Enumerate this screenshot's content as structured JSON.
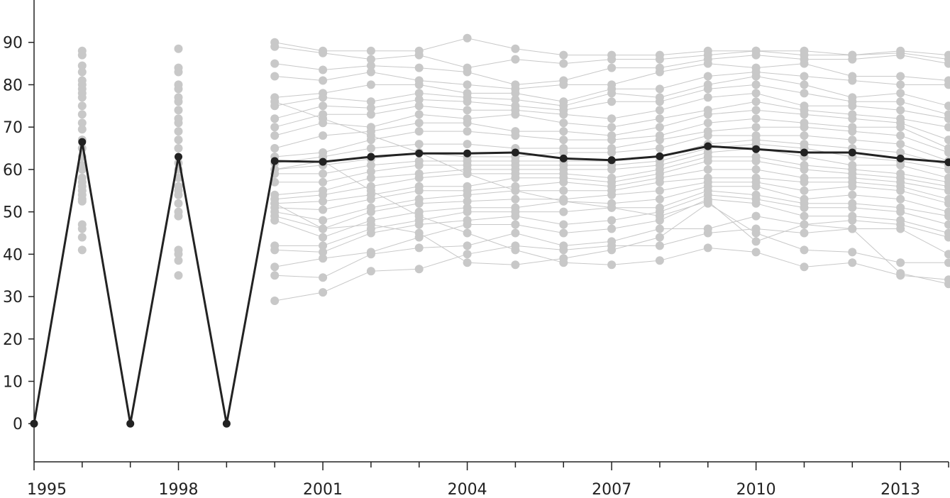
{
  "chart_data": {
    "type": "line",
    "title": "",
    "xlabel": "",
    "ylabel": "",
    "xlim": [
      1995,
      2014
    ],
    "ylim": [
      -9,
      100
    ],
    "x_ticks": [
      1995,
      1998,
      2001,
      2004,
      2007,
      2010,
      2013
    ],
    "y_ticks": [
      0,
      10,
      20,
      30,
      40,
      50,
      60,
      70,
      80,
      90
    ],
    "grid": false,
    "legend": "none",
    "background_series_color": "#c8c8c8",
    "highlight_series_color": "#222222",
    "highlight_series": {
      "x": [
        1995,
        1996,
        1997,
        1998,
        1999,
        2000,
        2001,
        2002,
        2003,
        2004,
        2005,
        2006,
        2007,
        2008,
        2009,
        2010,
        2011,
        2012,
        2013,
        2014
      ],
      "values": [
        0,
        66.5,
        0,
        63,
        0,
        62,
        61.8,
        63,
        63.8,
        63.8,
        64,
        62.6,
        62.2,
        63.1,
        65.5,
        64.8,
        64,
        64,
        62.6,
        61.7
      ]
    },
    "scatter_only": [
      {
        "x": 1996,
        "values": [
          88,
          87,
          84.5,
          83,
          81,
          80,
          79,
          78,
          77,
          75,
          73,
          71,
          69.5,
          67,
          65,
          63,
          61,
          60,
          58,
          57,
          56,
          55,
          54,
          53,
          52.5,
          47,
          46,
          44,
          41
        ]
      },
      {
        "x": 1998,
        "values": [
          88.5,
          84,
          83,
          80,
          79,
          77,
          76,
          74,
          72,
          71,
          69,
          67,
          65,
          61.5,
          60,
          58,
          56,
          55,
          54,
          52,
          50,
          49,
          41,
          40,
          38.5,
          35
        ]
      }
    ],
    "series_x": [
      2000,
      2001,
      2002,
      2003,
      2004,
      2005,
      2006,
      2007,
      2008,
      2009,
      2010,
      2011,
      2012,
      2013,
      2014
    ],
    "series": [
      {
        "values": [
          90,
          88,
          88,
          88,
          91,
          88.5,
          87,
          87,
          87,
          88,
          88,
          88,
          87,
          88,
          87
        ]
      },
      {
        "values": [
          89,
          87.5,
          86,
          87,
          84,
          86,
          85,
          86,
          86,
          87,
          88,
          87,
          87,
          87.5,
          86
        ]
      },
      {
        "values": [
          85,
          83.5,
          84.5,
          84,
          83,
          80,
          81,
          84,
          84,
          86,
          87,
          86,
          86,
          87,
          85
        ]
      },
      {
        "values": [
          82,
          81,
          83,
          81,
          80,
          79,
          80,
          80,
          83,
          85,
          84,
          85,
          82,
          82,
          81
        ]
      },
      {
        "values": [
          77,
          78,
          80,
          80,
          78,
          78,
          76,
          79,
          79,
          82,
          83,
          82,
          81,
          80,
          80
        ]
      },
      {
        "values": [
          75,
          77,
          76,
          78,
          77,
          76.5,
          75,
          78,
          77,
          80,
          82,
          80,
          77,
          78,
          75
        ]
      },
      {
        "values": [
          72,
          75,
          74.5,
          76.5,
          76,
          75,
          74,
          76,
          76,
          79,
          80,
          78,
          76,
          76,
          73
        ]
      },
      {
        "values": [
          70,
          73,
          73,
          75,
          74,
          74,
          73,
          72,
          74,
          77,
          78,
          75,
          75,
          74,
          72
        ]
      },
      {
        "values": [
          68,
          71,
          70,
          73,
          72,
          73,
          71,
          70,
          72,
          74,
          76,
          74,
          73,
          72,
          70
        ]
      },
      {
        "values": [
          65,
          68,
          69,
          71,
          71,
          69,
          69,
          68,
          70,
          73,
          74,
          73,
          72,
          71,
          67
        ]
      },
      {
        "values": [
          63,
          64,
          67,
          69,
          69,
          68,
          67,
          67,
          68,
          71,
          72,
          71,
          70,
          70,
          65
        ]
      },
      {
        "values": [
          61.5,
          63,
          65,
          66,
          66,
          65,
          65,
          65,
          67,
          69,
          70,
          70,
          69,
          68,
          64
        ]
      },
      {
        "values": [
          60,
          61,
          62.5,
          64,
          63,
          63,
          64,
          64,
          65,
          68,
          68,
          68,
          67,
          66,
          62
        ]
      },
      {
        "values": [
          59,
          59,
          61,
          62,
          62,
          62,
          62,
          62,
          63,
          66,
          67,
          66,
          65,
          64,
          61
        ]
      },
      {
        "values": [
          57,
          57,
          59.5,
          61,
          61,
          61,
          61,
          61,
          62,
          65,
          66,
          65,
          63,
          62,
          60
        ]
      },
      {
        "values": [
          54,
          55,
          58,
          59,
          60,
          60,
          60,
          60,
          61,
          64,
          65,
          63,
          61,
          61,
          58
        ]
      },
      {
        "values": [
          53,
          54,
          56,
          58,
          59,
          59,
          59,
          58,
          60,
          63,
          63,
          61,
          60,
          59,
          57
        ]
      },
      {
        "values": [
          52,
          52.5,
          54,
          56,
          56,
          58,
          58,
          57,
          59,
          62,
          62,
          60,
          59,
          58,
          56
        ]
      },
      {
        "values": [
          51,
          50.5,
          53,
          55,
          55,
          56,
          57,
          56,
          58,
          60,
          60,
          58,
          58,
          57,
          55
        ]
      },
      {
        "values": [
          50,
          48,
          51,
          53,
          54,
          55,
          55,
          55,
          57,
          58,
          58,
          57,
          57,
          56,
          53
        ]
      },
      {
        "values": [
          49,
          46,
          50,
          52,
          52.5,
          53,
          53,
          54,
          55,
          57,
          57,
          55,
          56,
          55,
          52
        ]
      },
      {
        "values": [
          48,
          44,
          48,
          50,
          51,
          51,
          52.5,
          52,
          53,
          56,
          56,
          53,
          54,
          53,
          50
        ]
      },
      {
        "values": [
          42,
          42,
          46,
          48,
          50,
          50,
          50,
          51,
          51,
          55,
          54,
          52,
          52,
          51,
          49
        ]
      },
      {
        "values": [
          41,
          40.5,
          45,
          47,
          48,
          49,
          47,
          48,
          50,
          54,
          53,
          51,
          51,
          50,
          47
        ]
      },
      {
        "values": [
          37,
          39,
          40.5,
          44,
          47,
          47,
          45,
          46,
          48,
          53,
          52,
          49,
          49,
          48,
          45
        ]
      },
      {
        "values": [
          35,
          34.5,
          40,
          41.5,
          42,
          45,
          42,
          43,
          46,
          46,
          49,
          47,
          48,
          47,
          44
        ]
      },
      {
        "values": [
          29,
          31,
          36,
          36.5,
          40,
          42,
          41,
          42,
          42,
          45,
          46,
          45,
          46,
          46,
          40
        ]
      },
      {
        "values": [
          52,
          46,
          47,
          45,
          38,
          37.5,
          39,
          41,
          44,
          52,
          45,
          41,
          40.5,
          38,
          38
        ]
      },
      {
        "values": [
          60,
          62,
          55,
          49,
          45,
          41,
          38,
          37.5,
          38.5,
          41.5,
          40.5,
          37,
          38,
          35,
          34
        ]
      },
      {
        "values": [
          76,
          72,
          68,
          64,
          59,
          55,
          52.5,
          51,
          49,
          52.5,
          43,
          47,
          46,
          35.5,
          33
        ]
      }
    ]
  }
}
